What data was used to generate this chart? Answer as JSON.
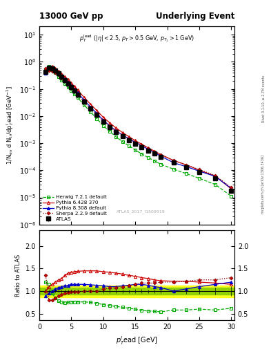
{
  "title_left": "13000 GeV pp",
  "title_right": "Underlying Event",
  "annotation": "ATLAS_2017_I1509919",
  "right_label_top": "Rivet 3.1.10, ≥ 2.7M events",
  "right_label_bot": "mcplots.cern.ch [arXiv:1306.3436]",
  "ylabel_main": "1/N$_{ev}$ d N$_{tr}$/dp$_T^l$ead [GeV$^{-1}$]",
  "ylabel_ratio": "Ratio to ATLAS",
  "xlabel": "$p_T^l$ead [GeV]",
  "atlas_x": [
    1.0,
    1.5,
    2.0,
    2.5,
    3.0,
    3.5,
    4.0,
    4.5,
    5.0,
    5.5,
    6.0,
    7.0,
    8.0,
    9.0,
    10.0,
    11.0,
    12.0,
    13.0,
    14.0,
    15.0,
    16.0,
    17.0,
    18.0,
    19.0,
    21.0,
    23.0,
    25.0,
    27.5,
    30.0
  ],
  "atlas_y": [
    0.42,
    0.6,
    0.58,
    0.48,
    0.37,
    0.28,
    0.21,
    0.155,
    0.115,
    0.086,
    0.063,
    0.034,
    0.019,
    0.011,
    0.0063,
    0.004,
    0.0026,
    0.0018,
    0.0013,
    0.00094,
    0.00071,
    0.00053,
    0.00041,
    0.00031,
    0.00019,
    0.00013,
    8.5e-05,
    5.2e-05,
    1.8e-05
  ],
  "atlas_yerr_lo": [
    0.02,
    0.02,
    0.02,
    0.015,
    0.012,
    0.009,
    0.007,
    0.005,
    0.004,
    0.003,
    0.002,
    0.001,
    0.0007,
    0.0004,
    0.00025,
    0.00016,
    0.0001,
    7e-05,
    5e-05,
    4e-05,
    3e-05,
    2e-05,
    1.6e-05,
    1.3e-05,
    9e-06,
    7e-06,
    5e-06,
    4e-06,
    2e-06
  ],
  "atlas_yerr_hi": [
    0.02,
    0.02,
    0.02,
    0.015,
    0.012,
    0.009,
    0.007,
    0.005,
    0.004,
    0.003,
    0.002,
    0.001,
    0.0007,
    0.0004,
    0.00025,
    0.00016,
    0.0001,
    7e-05,
    5e-05,
    4e-05,
    3e-05,
    2e-05,
    1.6e-05,
    1.3e-05,
    9e-06,
    7e-06,
    5e-06,
    4e-06,
    2e-06
  ],
  "herwig_ratio": [
    1.2,
    1.15,
    0.95,
    0.85,
    0.78,
    0.75,
    0.74,
    0.75,
    0.76,
    0.76,
    0.76,
    0.76,
    0.75,
    0.73,
    0.7,
    0.68,
    0.66,
    0.64,
    0.62,
    0.6,
    0.57,
    0.56,
    0.55,
    0.54,
    0.58,
    0.58,
    0.6,
    0.58,
    0.62
  ],
  "pythia6_ratio": [
    1.0,
    1.1,
    1.15,
    1.2,
    1.25,
    1.28,
    1.35,
    1.4,
    1.42,
    1.43,
    1.44,
    1.45,
    1.45,
    1.45,
    1.43,
    1.42,
    1.4,
    1.38,
    1.35,
    1.33,
    1.3,
    1.28,
    1.25,
    1.23,
    1.22,
    1.22,
    1.2,
    1.18,
    1.15
  ],
  "pythia8_ratio": [
    0.9,
    0.95,
    1.0,
    1.05,
    1.08,
    1.1,
    1.12,
    1.13,
    1.15,
    1.15,
    1.15,
    1.15,
    1.14,
    1.13,
    1.12,
    1.1,
    1.1,
    1.12,
    1.13,
    1.15,
    1.15,
    1.13,
    1.1,
    1.08,
    1.0,
    1.05,
    1.1,
    1.15,
    1.2
  ],
  "sherpa_ratio": [
    1.35,
    0.8,
    0.8,
    0.85,
    0.9,
    0.92,
    0.95,
    0.97,
    0.98,
    0.98,
    0.98,
    1.0,
    1.0,
    1.0,
    1.05,
    1.07,
    1.08,
    1.1,
    1.12,
    1.15,
    1.18,
    1.18,
    1.18,
    1.2,
    1.2,
    1.22,
    1.25,
    1.25,
    1.3
  ],
  "atlas_color": "#000000",
  "herwig_color": "#00aa00",
  "pythia6_color": "#cc0000",
  "pythia8_color": "#0000cc",
  "sherpa_dark_color": "#880000",
  "sherpa_dot_color": "#cc0000",
  "band_inner_color": "#88cc00",
  "band_outer_color": "#ffff00",
  "ylim_main": [
    1e-06,
    20.0
  ],
  "ylim_ratio": [
    0.35,
    2.35
  ],
  "ratio_yticks": [
    0.5,
    1.0,
    1.5,
    2.0
  ],
  "xlim": [
    0.0,
    30.5
  ],
  "legend_labels": [
    "ATLAS",
    "Herwig 7.2.1 default",
    "Pythia 6.428 370",
    "Pythia 8.308 default",
    "Sherpa 2.2.9 default"
  ]
}
